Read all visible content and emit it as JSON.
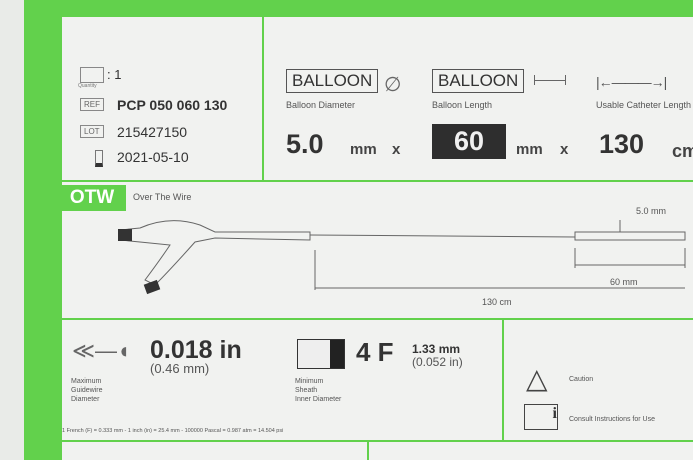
{
  "colors": {
    "label_green": "#62d14c",
    "panel": "#f1f2f0"
  },
  "info": {
    "quantity_icon": "scale-icon",
    "quantity_label": "Quantity",
    "quantity": ": 1",
    "ref_label": "REF",
    "ref": "PCP 050 060 130",
    "lot_label": "LOT",
    "lot": "215427150",
    "expiry_icon": "hourglass-icon",
    "expiry": "2021-05-10"
  },
  "specs": {
    "diameter": {
      "label": "BALLOON",
      "caption": "Balloon Diameter",
      "value": "5.0",
      "unit": "mm",
      "sep": "x"
    },
    "length": {
      "label": "BALLOON",
      "caption": "Balloon Length",
      "value": "60",
      "unit": "mm",
      "sep": "x"
    },
    "catheter": {
      "caption": "Usable Catheter Length",
      "value": "130",
      "unit": "cm"
    }
  },
  "otw": {
    "tab": "OTW",
    "title": "Over The Wire",
    "dia": "5.0  mm",
    "len": "60   mm",
    "total": "130  cm"
  },
  "guidewire": {
    "value": "0.018 in",
    "sub": "(0.46 mm)",
    "caption": [
      "Maximum",
      "Guidewire",
      "Diameter"
    ]
  },
  "sheath": {
    "value": "4 F",
    "mm": "1.33 mm",
    "in": "(0.052 in)",
    "caption": [
      "Minimum",
      "Sheath",
      "Inner Diameter"
    ]
  },
  "conversion": "1 French (F) = 0.333 mm - 1 inch (in) = 25.4 mm - 100000 Pascal = 0.987 atm = 14.504 psi",
  "symbols": {
    "caution": "Caution",
    "ifu": "Consult Instructions for Use"
  }
}
